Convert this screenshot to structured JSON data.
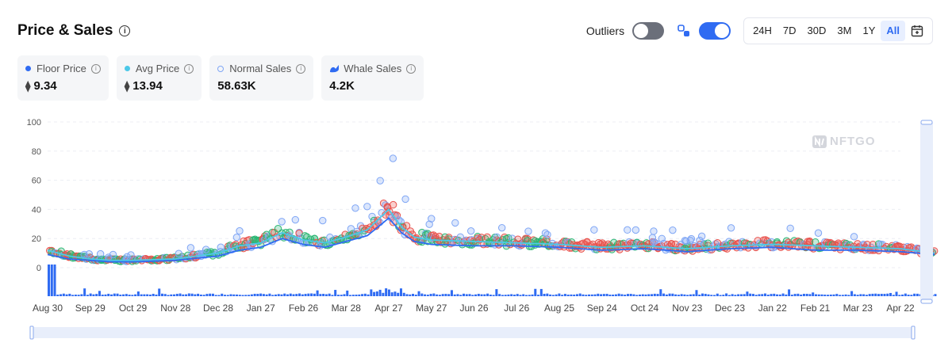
{
  "header": {
    "title": "Price & Sales"
  },
  "controls": {
    "outliers_label": "Outliers",
    "outliers_on": false,
    "price_toggle_on": true,
    "ranges": [
      "24H",
      "7D",
      "30D",
      "3M",
      "1Y",
      "All"
    ],
    "active_range": "All"
  },
  "stats": [
    {
      "label": "Floor Price",
      "value": "9.34",
      "marker": "dot",
      "color": "#2f6bf2",
      "eth": true
    },
    {
      "label": "Avg Price",
      "value": "13.94",
      "marker": "dot",
      "color": "#4cc8e8",
      "eth": true
    },
    {
      "label": "Normal Sales",
      "value": "58.63K",
      "marker": "ring",
      "color": "#7fa6f5",
      "eth": false
    },
    {
      "label": "Whale Sales",
      "value": "4.2K",
      "marker": "whale",
      "color": "#2f6bf2",
      "eth": false
    }
  ],
  "watermark": "NFTGO",
  "colors": {
    "accent": "#2f6bf2",
    "up": "#2bb673",
    "down": "#e8524d",
    "floor": "#2f6bf2",
    "avg": "#4cc8e8"
  },
  "chart_data": {
    "type": "scatter",
    "ylim": [
      0,
      100
    ],
    "yticks": [
      0,
      20,
      40,
      60,
      80,
      100
    ],
    "grid": true,
    "xticks": [
      "Aug 30",
      "Sep 29",
      "Oct 29",
      "Nov 28",
      "Dec 28",
      "Jan 27",
      "Feb 26",
      "Mar 28",
      "Apr 27",
      "May 27",
      "Jun 26",
      "Jul 26",
      "Aug 25",
      "Sep 24",
      "Oct 24",
      "Nov 23",
      "Dec 23",
      "Jan 22",
      "Feb 21",
      "Mar 23",
      "Apr 22"
    ],
    "series": [
      {
        "name": "Floor Price",
        "x": [
          0,
          0.5,
          1,
          1.5,
          2,
          3,
          4,
          4.5,
          5,
          5.5,
          6,
          6.5,
          7,
          7.5,
          8,
          8.3,
          8.6,
          9,
          10,
          11,
          12,
          13,
          14,
          15,
          16,
          17,
          18,
          19,
          20,
          20.8
        ],
        "values": [
          9,
          6,
          5,
          4,
          4,
          5,
          8,
          12,
          14,
          20,
          16,
          14,
          18,
          22,
          34,
          24,
          18,
          16,
          15,
          15,
          14,
          12,
          13,
          11,
          13,
          14,
          12,
          12,
          11,
          9
        ]
      },
      {
        "name": "Avg Price",
        "x": [
          0,
          0.5,
          1,
          1.5,
          2,
          3,
          4,
          4.5,
          5,
          5.5,
          6,
          6.5,
          7,
          7.5,
          8,
          8.3,
          8.6,
          9,
          10,
          11,
          12,
          13,
          14,
          15,
          16,
          17,
          18,
          19,
          20,
          20.8
        ],
        "values": [
          12,
          8,
          6,
          5,
          5,
          6,
          10,
          15,
          17,
          24,
          19,
          17,
          21,
          26,
          40,
          28,
          21,
          19,
          18,
          17,
          16,
          14,
          15,
          13,
          15,
          16,
          15,
          14,
          13,
          10
        ]
      }
    ],
    "outlier_points": [
      {
        "x": 8.1,
        "y": 75
      }
    ]
  }
}
